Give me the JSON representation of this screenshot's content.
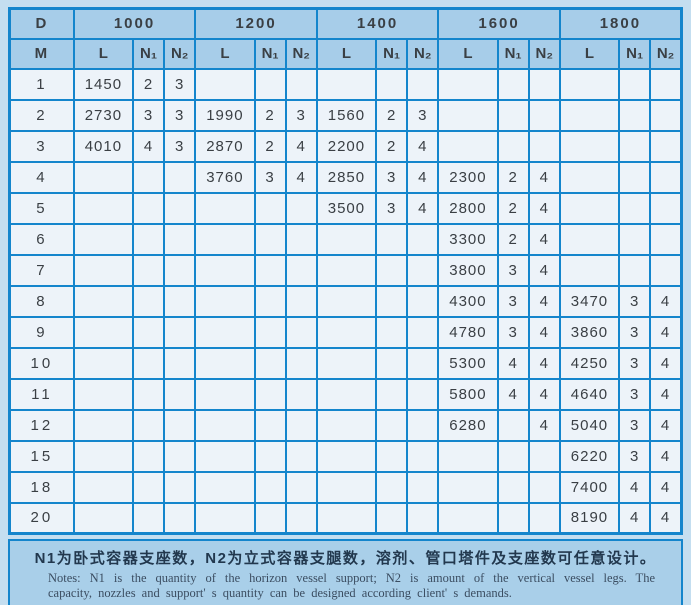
{
  "table": {
    "corner_top_label": "D",
    "corner_bottom_label": "M",
    "diameters": [
      "1000",
      "1200",
      "1400",
      "1600",
      "1800"
    ],
    "sub_headers": [
      "N₁",
      "N₂"
    ],
    "sub_header_l": "L",
    "rows": [
      {
        "m": "1",
        "values": [
          "1450",
          "2",
          "3",
          "",
          "",
          "",
          "",
          "",
          "",
          "",
          "",
          "",
          "",
          "",
          ""
        ]
      },
      {
        "m": "2",
        "values": [
          "2730",
          "3",
          "3",
          "1990",
          "2",
          "3",
          "1560",
          "2",
          "3",
          "",
          "",
          "",
          "",
          "",
          ""
        ]
      },
      {
        "m": "3",
        "values": [
          "4010",
          "4",
          "3",
          "2870",
          "2",
          "4",
          "2200",
          "2",
          "4",
          "",
          "",
          "",
          "",
          "",
          ""
        ]
      },
      {
        "m": "4",
        "values": [
          "",
          "",
          "",
          "3760",
          "3",
          "4",
          "2850",
          "3",
          "4",
          "2300",
          "2",
          "4",
          "",
          "",
          ""
        ]
      },
      {
        "m": "5",
        "values": [
          "",
          "",
          "",
          "",
          "",
          "",
          "3500",
          "3",
          "4",
          "2800",
          "2",
          "4",
          "",
          "",
          ""
        ]
      },
      {
        "m": "6",
        "values": [
          "",
          "",
          "",
          "",
          "",
          "",
          "",
          "",
          "",
          "3300",
          "2",
          "4",
          "",
          "",
          ""
        ]
      },
      {
        "m": "7",
        "values": [
          "",
          "",
          "",
          "",
          "",
          "",
          "",
          "",
          "",
          "3800",
          "3",
          "4",
          "",
          "",
          ""
        ]
      },
      {
        "m": "8",
        "values": [
          "",
          "",
          "",
          "",
          "",
          "",
          "",
          "",
          "",
          "4300",
          "3",
          "4",
          "3470",
          "3",
          "4"
        ]
      },
      {
        "m": "9",
        "values": [
          "",
          "",
          "",
          "",
          "",
          "",
          "",
          "",
          "",
          "4780",
          "3",
          "4",
          "3860",
          "3",
          "4"
        ]
      },
      {
        "m": "10",
        "values": [
          "",
          "",
          "",
          "",
          "",
          "",
          "",
          "",
          "",
          "5300",
          "4",
          "4",
          "4250",
          "3",
          "4"
        ]
      },
      {
        "m": "11",
        "values": [
          "",
          "",
          "",
          "",
          "",
          "",
          "",
          "",
          "",
          "5800",
          "4",
          "4",
          "4640",
          "3",
          "4"
        ]
      },
      {
        "m": "12",
        "values": [
          "",
          "",
          "",
          "",
          "",
          "",
          "",
          "",
          "",
          "6280",
          "",
          "4",
          "5040",
          "3",
          "4"
        ]
      },
      {
        "m": "15",
        "values": [
          "",
          "",
          "",
          "",
          "",
          "",
          "",
          "",
          "",
          "",
          "",
          "",
          "6220",
          "3",
          "4"
        ]
      },
      {
        "m": "18",
        "values": [
          "",
          "",
          "",
          "",
          "",
          "",
          "",
          "",
          "",
          "",
          "",
          "",
          "7400",
          "4",
          "4"
        ]
      },
      {
        "m": "20",
        "values": [
          "",
          "",
          "",
          "",
          "",
          "",
          "",
          "",
          "",
          "",
          "",
          "",
          "8190",
          "4",
          "4"
        ]
      }
    ]
  },
  "notes": {
    "chinese": "N1为卧式容器支座数，N2为立式容器支腿数，溶剂、管口塔件及支座数可任意设计。",
    "english_line1": "Notes: N1 is the quantity of the horizon vessel support; N2 is amount of the vertical vessel legs. The",
    "english_line2": "capacity, nozzles and support' s quantity can be designed according client' s demands."
  },
  "colors": {
    "page_background": "#c4def0",
    "table_border": "#1485cc",
    "header_fill": "#a7cde9",
    "cell_fill": "#edf3f9",
    "notes_fill": "#a9cfe9",
    "text": "#3a3f44"
  }
}
